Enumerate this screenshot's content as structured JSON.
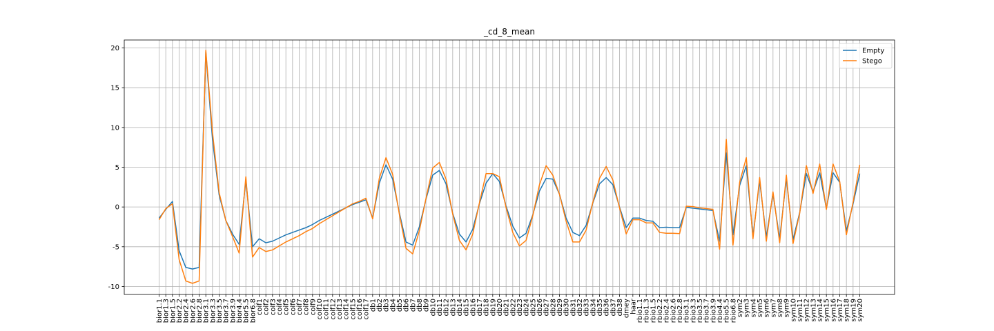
{
  "chart_data": {
    "type": "line",
    "title": "_cd_8_mean",
    "xlabel": "",
    "ylabel": "",
    "ylim": [
      -11,
      21
    ],
    "yticks": [
      -10,
      -5,
      0,
      5,
      10,
      15,
      20
    ],
    "grid": true,
    "legend_position": "top-right",
    "categories": [
      "bior1.1",
      "bior1.3",
      "bior1.5",
      "bior2.2",
      "bior2.4",
      "bior2.6",
      "bior2.8",
      "bior3.1",
      "bior3.3",
      "bior3.5",
      "bior3.7",
      "bior3.9",
      "bior4.4",
      "bior5.5",
      "bior6.8",
      "coif1",
      "coif2",
      "coif3",
      "coif4",
      "coif5",
      "coif6",
      "coif7",
      "coif8",
      "coif9",
      "coif10",
      "coif11",
      "coif12",
      "coif13",
      "coif14",
      "coif15",
      "coif16",
      "coif17",
      "db1",
      "db2",
      "db3",
      "db4",
      "db5",
      "db6",
      "db7",
      "db8",
      "db9",
      "db10",
      "db11",
      "db12",
      "db13",
      "db14",
      "db15",
      "db16",
      "db17",
      "db18",
      "db19",
      "db20",
      "db21",
      "db22",
      "db23",
      "db24",
      "db25",
      "db26",
      "db27",
      "db28",
      "db29",
      "db30",
      "db31",
      "db32",
      "db33",
      "db34",
      "db35",
      "db36",
      "db37",
      "db38",
      "dmey",
      "haar",
      "rbio1.1",
      "rbio1.3",
      "rbio1.5",
      "rbio2.2",
      "rbio2.4",
      "rbio2.6",
      "rbio2.8",
      "rbio3.1",
      "rbio3.3",
      "rbio3.5",
      "rbio3.7",
      "rbio3.9",
      "rbio4.4",
      "rbio5.5",
      "rbio6.8",
      "sym2",
      "sym3",
      "sym4",
      "sym5",
      "sym6",
      "sym7",
      "sym8",
      "sym9",
      "sym10",
      "sym11",
      "sym12",
      "sym13",
      "sym14",
      "sym15",
      "sym16",
      "sym17",
      "sym18",
      "sym19",
      "sym20"
    ],
    "series": [
      {
        "name": "Empty",
        "color": "#1f77b4",
        "values": [
          -1.4,
          -0.3,
          0.7,
          -5.5,
          -7.6,
          -7.8,
          -7.6,
          19.5,
          8.5,
          1.5,
          -1.7,
          -3.4,
          -4.7,
          3.4,
          -5.0,
          -4.0,
          -4.5,
          -4.3,
          -3.9,
          -3.5,
          -3.2,
          -2.9,
          -2.6,
          -2.2,
          -1.7,
          -1.3,
          -0.9,
          -0.5,
          -0.1,
          0.3,
          0.6,
          0.9,
          -1.4,
          3.0,
          5.3,
          3.5,
          -0.7,
          -4.4,
          -4.8,
          -2.5,
          1.0,
          4.0,
          4.6,
          2.9,
          -0.8,
          -3.4,
          -4.4,
          -2.8,
          0.4,
          3.0,
          4.2,
          3.2,
          0.1,
          -2.4,
          -3.9,
          -3.3,
          -1.0,
          2.0,
          3.6,
          3.5,
          1.6,
          -1.4,
          -3.2,
          -3.6,
          -2.3,
          0.5,
          2.9,
          3.7,
          2.8,
          0.0,
          -2.6,
          -1.4,
          -1.4,
          -1.7,
          -1.8,
          -2.6,
          -2.55,
          -2.6,
          -2.6,
          -0.05,
          -0.15,
          -0.25,
          -0.35,
          -0.45,
          -4.3,
          6.8,
          -3.5,
          2.7,
          5.2,
          -3.7,
          3.3,
          -3.8,
          1.7,
          -4.0,
          3.6,
          -4.1,
          -0.7,
          4.2,
          1.9,
          4.3,
          -0.2,
          4.3,
          3.1,
          -3.0,
          0.4,
          4.2
        ]
      },
      {
        "name": "Stego",
        "color": "#ff7f0e",
        "values": [
          -1.6,
          -0.2,
          0.4,
          -6.6,
          -9.3,
          -9.6,
          -9.3,
          19.7,
          9.4,
          1.8,
          -1.7,
          -3.7,
          -5.8,
          3.8,
          -6.3,
          -5.1,
          -5.6,
          -5.4,
          -4.9,
          -4.4,
          -4.0,
          -3.6,
          -3.1,
          -2.7,
          -2.1,
          -1.6,
          -1.1,
          -0.6,
          -0.1,
          0.4,
          0.7,
          1.1,
          -1.5,
          3.6,
          6.2,
          4.1,
          -0.9,
          -5.2,
          -5.9,
          -3.0,
          1.1,
          4.9,
          5.6,
          3.5,
          -0.9,
          -4.2,
          -5.4,
          -3.4,
          0.5,
          4.2,
          4.2,
          3.8,
          -0.1,
          -3.2,
          -4.9,
          -4.2,
          -1.1,
          2.8,
          5.2,
          4.0,
          1.6,
          -1.8,
          -4.4,
          -4.4,
          -2.9,
          0.6,
          3.6,
          5.1,
          3.4,
          -0.1,
          -3.4,
          -1.6,
          -1.6,
          -2.0,
          -2.0,
          -3.2,
          -3.3,
          -3.3,
          -3.35,
          0.1,
          0.05,
          -0.1,
          -0.2,
          -0.3,
          -5.3,
          8.5,
          -4.8,
          3.1,
          6.2,
          -4.0,
          3.7,
          -4.3,
          1.9,
          -4.5,
          4.0,
          -4.6,
          -0.8,
          5.2,
          1.7,
          5.4,
          -0.3,
          5.4,
          3.2,
          -3.5,
          0.6,
          5.3
        ]
      }
    ]
  }
}
